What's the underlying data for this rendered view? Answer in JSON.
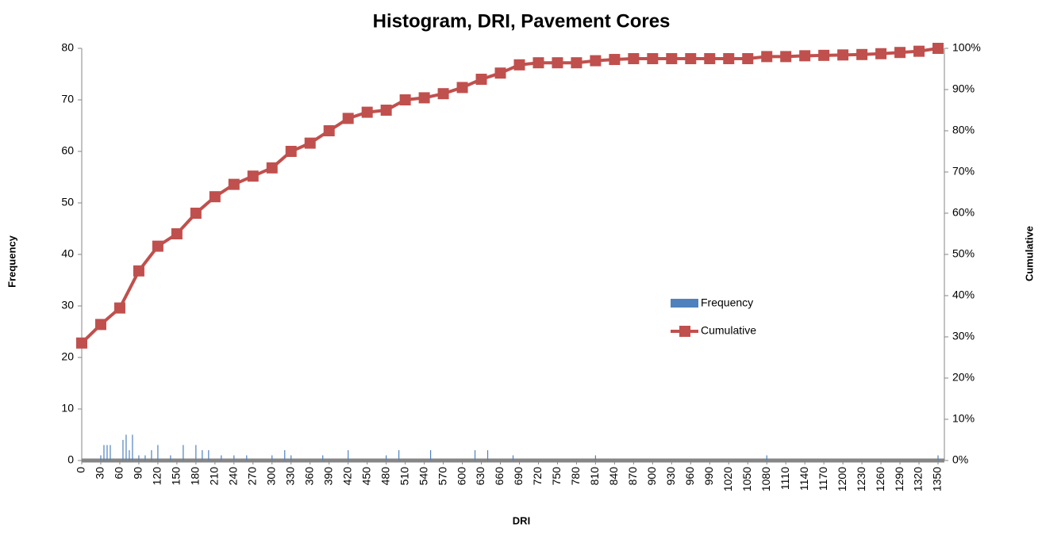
{
  "chart_data": {
    "type": "bar",
    "title": "Histogram, DRI, Pavement Cores",
    "x_label": "DRI",
    "y_label": "Frequency",
    "y2_label": "Cumulative",
    "xlim": [
      0,
      1360
    ],
    "xticks": [
      0,
      30,
      60,
      90,
      120,
      150,
      180,
      210,
      240,
      270,
      300,
      330,
      360,
      390,
      420,
      450,
      480,
      510,
      540,
      570,
      600,
      630,
      660,
      690,
      720,
      750,
      780,
      810,
      840,
      870,
      900,
      930,
      960,
      990,
      1020,
      1050,
      1080,
      1110,
      1140,
      1170,
      1200,
      1230,
      1260,
      1290,
      1320,
      1350
    ],
    "ylim": [
      0,
      80
    ],
    "yticks": [
      0,
      10,
      20,
      30,
      40,
      50,
      60,
      70,
      80
    ],
    "y2lim": [
      0,
      100
    ],
    "y2ticks": [
      {
        "value": 0,
        "label": "0%"
      },
      {
        "value": 10,
        "label": "10%"
      },
      {
        "value": 20,
        "label": "20%"
      },
      {
        "value": 30,
        "label": "30%"
      },
      {
        "value": 40,
        "label": "40%"
      },
      {
        "value": 50,
        "label": "50%"
      },
      {
        "value": 60,
        "label": "60%"
      },
      {
        "value": 70,
        "label": "70%"
      },
      {
        "value": 80,
        "label": "80%"
      },
      {
        "value": 90,
        "label": "90%"
      },
      {
        "value": 100,
        "label": "100%"
      }
    ],
    "legend": "right",
    "series": [
      {
        "name": "Frequency",
        "type": "bar",
        "color": "#4f81bd",
        "x": [
          30,
          35,
          40,
          45,
          65,
          70,
          75,
          80,
          90,
          100,
          110,
          120,
          140,
          160,
          180,
          190,
          200,
          220,
          240,
          260,
          300,
          320,
          330,
          380,
          420,
          480,
          500,
          550,
          620,
          640,
          680,
          810,
          1080,
          1350
        ],
        "values": [
          1,
          3,
          3,
          3,
          4,
          5,
          2,
          5,
          1,
          1,
          2,
          3,
          1,
          3,
          3,
          2,
          2,
          1,
          1,
          1,
          1,
          2,
          1,
          1,
          2,
          1,
          2,
          2,
          2,
          2,
          1,
          1,
          1,
          1
        ]
      },
      {
        "name": "Cumulative",
        "type": "line",
        "axis": "y2",
        "color": "#c0504d",
        "x": [
          0,
          30,
          60,
          90,
          120,
          150,
          180,
          210,
          240,
          270,
          300,
          330,
          360,
          390,
          420,
          450,
          480,
          510,
          540,
          570,
          600,
          630,
          660,
          690,
          720,
          750,
          780,
          810,
          840,
          870,
          900,
          930,
          960,
          990,
          1020,
          1050,
          1080,
          1110,
          1140,
          1170,
          1200,
          1230,
          1260,
          1290,
          1320,
          1350
        ],
        "values": [
          28.5,
          33,
          37,
          46,
          52,
          55,
          60,
          64,
          67,
          69,
          71,
          75,
          77,
          80,
          83,
          84.5,
          85,
          87.5,
          88,
          89,
          90.5,
          92.5,
          94,
          96,
          96.5,
          96.5,
          96.5,
          97,
          97.3,
          97.5,
          97.5,
          97.5,
          97.5,
          97.5,
          97.5,
          97.5,
          98,
          98,
          98.2,
          98.3,
          98.4,
          98.5,
          98.7,
          99,
          99.3,
          100
        ]
      }
    ]
  }
}
